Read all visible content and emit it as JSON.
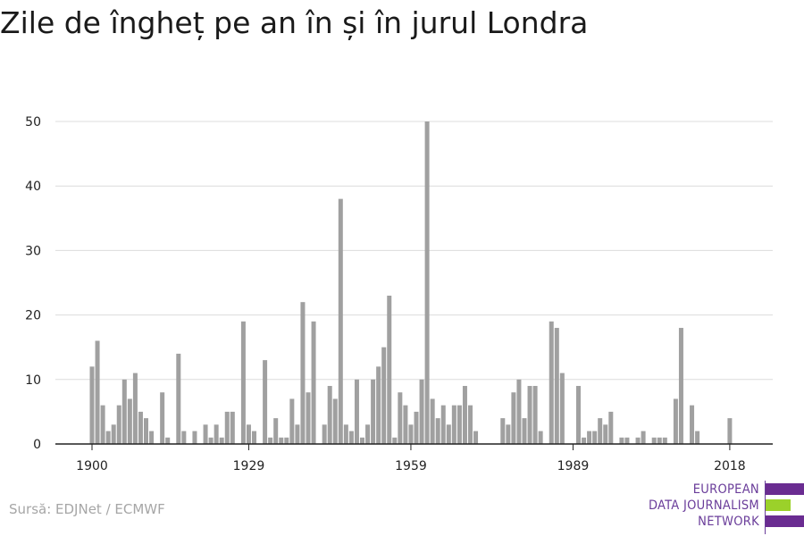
{
  "title": "Zile de îngheț pe an în și în jurul Londra",
  "source": "Sursă: EDJNet / ECMWF",
  "logo": {
    "line1": "EUROPEAN",
    "line2": "DATA JOURNALISM",
    "line3": "NETWORK"
  },
  "colors": {
    "bar": "#a0a0a0",
    "grid": "#dcdcdc",
    "axis": "#222222",
    "logo_purple": "#6a2c91",
    "logo_green": "#9bd12a"
  },
  "chart_data": {
    "type": "bar",
    "title": "Zile de îngheț pe an în și în jurul Londra",
    "xlabel": "",
    "ylabel": "",
    "ylim": [
      0,
      50
    ],
    "y_ticks": [
      0,
      10,
      20,
      30,
      40,
      50
    ],
    "x_ticks": [
      1900,
      1929,
      1959,
      1989,
      2018
    ],
    "grid": true,
    "x": [
      1900,
      1901,
      1902,
      1903,
      1904,
      1905,
      1906,
      1907,
      1908,
      1909,
      1910,
      1911,
      1912,
      1913,
      1914,
      1915,
      1916,
      1917,
      1918,
      1919,
      1920,
      1921,
      1922,
      1923,
      1924,
      1925,
      1926,
      1927,
      1928,
      1929,
      1930,
      1931,
      1932,
      1933,
      1934,
      1935,
      1936,
      1937,
      1938,
      1939,
      1940,
      1941,
      1942,
      1943,
      1944,
      1945,
      1946,
      1947,
      1948,
      1949,
      1950,
      1951,
      1952,
      1953,
      1954,
      1955,
      1956,
      1957,
      1958,
      1959,
      1960,
      1961,
      1962,
      1963,
      1964,
      1965,
      1966,
      1967,
      1968,
      1969,
      1970,
      1971,
      1972,
      1973,
      1974,
      1975,
      1976,
      1977,
      1978,
      1979,
      1980,
      1981,
      1982,
      1983,
      1984,
      1985,
      1986,
      1987,
      1988,
      1989,
      1990,
      1991,
      1992,
      1993,
      1994,
      1995,
      1996,
      1997,
      1998,
      1999,
      2000,
      2001,
      2002,
      2003,
      2004,
      2005,
      2006,
      2007,
      2008,
      2009,
      2010,
      2011,
      2012,
      2013,
      2014,
      2015,
      2016,
      2017,
      2018
    ],
    "values": [
      12,
      16,
      6,
      2,
      3,
      6,
      10,
      7,
      11,
      5,
      4,
      2,
      0,
      8,
      1,
      0,
      14,
      2,
      0,
      2,
      0,
      3,
      1,
      3,
      1,
      5,
      5,
      0,
      19,
      3,
      2,
      0,
      13,
      1,
      4,
      1,
      1,
      7,
      3,
      22,
      8,
      19,
      0,
      3,
      9,
      7,
      38,
      3,
      2,
      10,
      1,
      3,
      10,
      12,
      15,
      23,
      1,
      8,
      6,
      3,
      5,
      10,
      50,
      7,
      4,
      6,
      3,
      6,
      6,
      9,
      6,
      2,
      0,
      0,
      0,
      0,
      4,
      3,
      8,
      10,
      4,
      9,
      9,
      2,
      0,
      19,
      18,
      11,
      0,
      0,
      9,
      1,
      2,
      2,
      4,
      3,
      5,
      0,
      1,
      1,
      0,
      1,
      2,
      0,
      1,
      1,
      1,
      0,
      7,
      18,
      0,
      6,
      2,
      0,
      0,
      0,
      0,
      0,
      4
    ]
  }
}
